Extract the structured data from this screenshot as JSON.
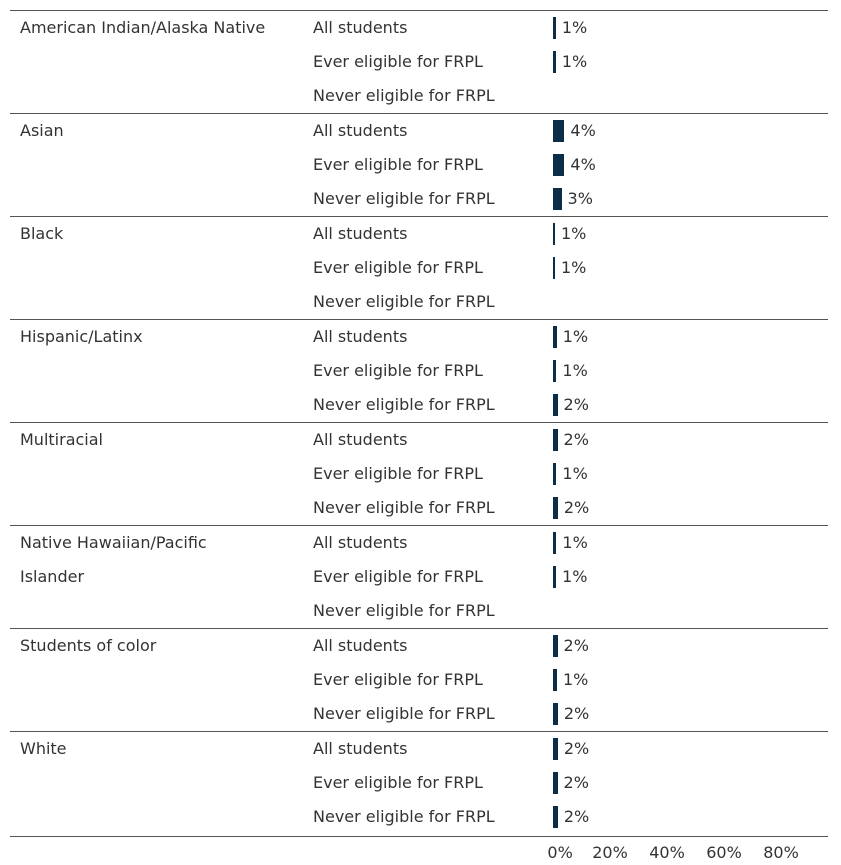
{
  "chart_data": {
    "type": "bar",
    "color": "#0b2d48",
    "xlim": [
      0,
      100
    ],
    "xticks": [
      {
        "value": 0,
        "label": "0%"
      },
      {
        "value": 20,
        "label": "20%"
      },
      {
        "value": 40,
        "label": "40%"
      },
      {
        "value": 60,
        "label": "60%"
      },
      {
        "value": 80,
        "label": "80%"
      }
    ],
    "groups": [
      {
        "name": "American Indian/Alaska Native",
        "categories": [
          "All students",
          "Ever eligible for FRPL",
          "Never eligible for FRPL"
        ],
        "values": [
          1,
          1,
          null
        ],
        "value_labels": [
          "1%",
          "1%",
          null
        ]
      },
      {
        "name": "Asian",
        "categories": [
          "All students",
          "Ever eligible for FRPL",
          "Never eligible for FRPL"
        ],
        "values": [
          4,
          4,
          3
        ],
        "value_labels": [
          "4%",
          "4%",
          "3%"
        ]
      },
      {
        "name": "Black",
        "categories": [
          "All students",
          "Ever eligible for FRPL",
          "Never eligible for FRPL"
        ],
        "values": [
          0.7,
          0.7,
          null
        ],
        "value_labels": [
          "1%",
          "1%",
          null
        ]
      },
      {
        "name": "Hispanic/Latinx",
        "categories": [
          "All students",
          "Ever eligible for FRPL",
          "Never eligible for FRPL"
        ],
        "values": [
          1.3,
          1.2,
          1.6
        ],
        "value_labels": [
          "1%",
          "1%",
          "2%"
        ]
      },
      {
        "name": "Multiracial",
        "categories": [
          "All students",
          "Ever eligible for FRPL",
          "Never eligible for FRPL"
        ],
        "values": [
          1.6,
          1.2,
          1.7
        ],
        "value_labels": [
          "2%",
          "1%",
          "2%"
        ]
      },
      {
        "name": "Native Hawaiian/Pacific Islander",
        "categories": [
          "All students",
          "Ever eligible for FRPL",
          "Never eligible for FRPL"
        ],
        "values": [
          1.2,
          1.1,
          null
        ],
        "value_labels": [
          "1%",
          "1%",
          null
        ]
      },
      {
        "name": "Students of color",
        "categories": [
          "All students",
          "Ever eligible for FRPL",
          "Never eligible for FRPL"
        ],
        "values": [
          1.6,
          1.4,
          1.7
        ],
        "value_labels": [
          "2%",
          "1%",
          "2%"
        ]
      },
      {
        "name": "White",
        "categories": [
          "All students",
          "Ever eligible for FRPL",
          "Never eligible for FRPL"
        ],
        "values": [
          1.7,
          1.6,
          1.7
        ],
        "value_labels": [
          "2%",
          "2%",
          "2%"
        ]
      }
    ]
  }
}
